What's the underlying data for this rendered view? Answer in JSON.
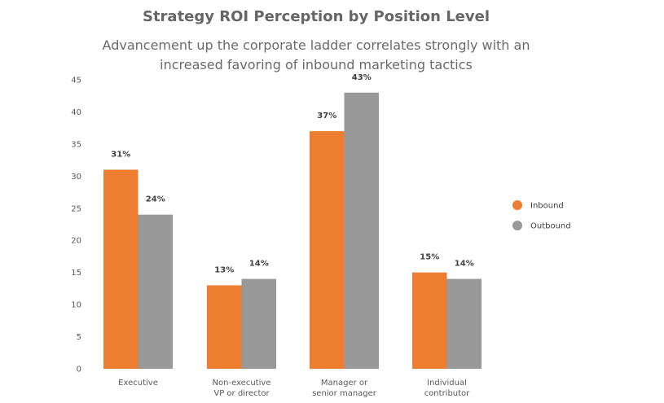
{
  "chart_data": {
    "type": "bar",
    "title": "Strategy ROI Perception by Position Level",
    "subtitle": "Advancement up the corporate ladder correlates strongly with an increased favoring of inbound marketing tactics",
    "xlabel": "",
    "ylabel": "",
    "ylim": [
      0,
      45
    ],
    "yticks": [
      0,
      5,
      10,
      15,
      20,
      25,
      30,
      35,
      40,
      45
    ],
    "grid": false,
    "legend_position": "right",
    "categories": [
      [
        "Executive"
      ],
      [
        "Non-executive",
        "VP or director"
      ],
      [
        "Manager or",
        "senior manager"
      ],
      [
        "Individual",
        "contributor"
      ]
    ],
    "series": [
      {
        "name": "Inbound",
        "color": "#ED7D31",
        "values": [
          31,
          13,
          37,
          15
        ],
        "data_labels": [
          "31%",
          "13%",
          "37%",
          "15%"
        ]
      },
      {
        "name": "Outbound",
        "color": "#999999",
        "values": [
          24,
          14,
          43,
          14
        ],
        "data_labels": [
          "24%",
          "14%",
          "43%",
          "14%"
        ]
      }
    ]
  }
}
